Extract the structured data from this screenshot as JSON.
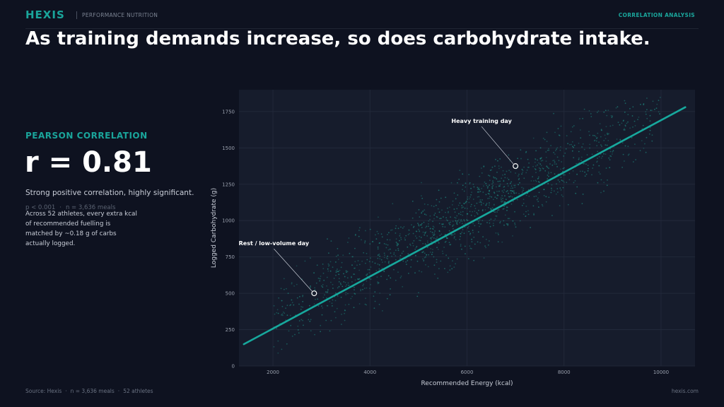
{
  "header": {
    "brand": "HEXIS",
    "brand_subtitle": "PERFORMANCE NUTRITION",
    "section_tag": "CORRELATION ANALYSIS"
  },
  "headline": "As training demands increase, so does carbohydrate intake.",
  "kpi": {
    "label": "PEARSON CORRELATION",
    "value": "r = 0.81",
    "description": "Strong positive correlation, highly significant.",
    "p_value": "p < 0.001",
    "n": "n = 3,636 meals",
    "body": "Across 52 athletes, every extra kcal of recommended fuelling is matched by ~0.18 g of carbs actually logged."
  },
  "footer": {
    "source": "Source: Hexis",
    "meals": "n = 3,636 meals",
    "athletes": "52 athletes",
    "site": "hexis.com"
  },
  "colors": {
    "accent": "#1aa59b",
    "trend_line": "#17a89d",
    "point": "#1e8f84",
    "plot_background": "#161c2c"
  },
  "chart_data": {
    "type": "scatter",
    "title": "",
    "xlabel": "Recommended Energy (kcal)",
    "ylabel": "Logged Carbohydrate (g)",
    "xlim": [
      1300,
      10700
    ],
    "ylim": [
      0,
      1900
    ],
    "xticks": [
      2000,
      4000,
      6000,
      8000,
      10000
    ],
    "yticks": [
      0,
      250,
      500,
      750,
      1000,
      1250,
      1500,
      1750
    ],
    "grid": true,
    "n_points": 3636,
    "correlation_r": 0.81,
    "trend_line": {
      "x": [
        1400,
        10500
      ],
      "y": [
        150,
        1780
      ]
    },
    "scatter_density": [
      {
        "x": 2500,
        "y": 360,
        "weight": 0.06
      },
      {
        "x": 3500,
        "y": 560,
        "weight": 0.12
      },
      {
        "x": 4500,
        "y": 740,
        "weight": 0.16
      },
      {
        "x": 5500,
        "y": 920,
        "weight": 0.18
      },
      {
        "x": 6500,
        "y": 1100,
        "weight": 0.17
      },
      {
        "x": 7500,
        "y": 1290,
        "weight": 0.14
      },
      {
        "x": 8500,
        "y": 1440,
        "weight": 0.1
      },
      {
        "x": 9500,
        "y": 1520,
        "weight": 0.07
      }
    ],
    "annotations": [
      {
        "label": "Heavy training day",
        "x": 7000,
        "y": 1375
      },
      {
        "label": "Rest / low-volume day",
        "x": 2850,
        "y": 500
      }
    ]
  }
}
